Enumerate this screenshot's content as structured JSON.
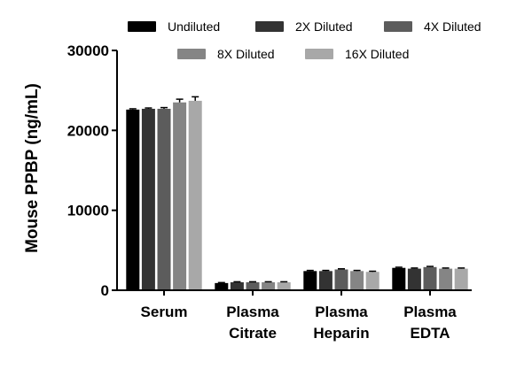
{
  "chart_data": {
    "type": "bar",
    "ylabel": "Mouse  PPBP (ng/mL)",
    "xlabel": "",
    "title": "",
    "ylim": [
      0,
      30000
    ],
    "yticks": [
      0,
      10000,
      20000,
      30000
    ],
    "ytick_labels": [
      "0",
      "10000",
      "20000",
      "30000"
    ],
    "categories": [
      [
        "Serum"
      ],
      [
        "Plasma",
        "Citrate"
      ],
      [
        "Plasma",
        "Heparin"
      ],
      [
        "Plasma",
        "EDTA"
      ]
    ],
    "legend_position": "top",
    "series": [
      {
        "name": "Undiluted",
        "color": "#000000",
        "values": [
          22600,
          900,
          2400,
          2800
        ],
        "errors": [
          100,
          60,
          80,
          80
        ]
      },
      {
        "name": "2X Diluted",
        "color": "#333333",
        "values": [
          22700,
          1000,
          2400,
          2700
        ],
        "errors": [
          100,
          60,
          80,
          80
        ]
      },
      {
        "name": "4X Diluted",
        "color": "#5c5c5c",
        "values": [
          22700,
          1000,
          2600,
          2900
        ],
        "errors": [
          150,
          60,
          80,
          80
        ]
      },
      {
        "name": "8X Diluted",
        "color": "#858585",
        "values": [
          23500,
          1000,
          2400,
          2700
        ],
        "errors": [
          400,
          60,
          80,
          80
        ]
      },
      {
        "name": "16X Diluted",
        "color": "#a8a8a8",
        "values": [
          23700,
          1000,
          2300,
          2700
        ],
        "errors": [
          500,
          60,
          80,
          80
        ]
      }
    ]
  }
}
